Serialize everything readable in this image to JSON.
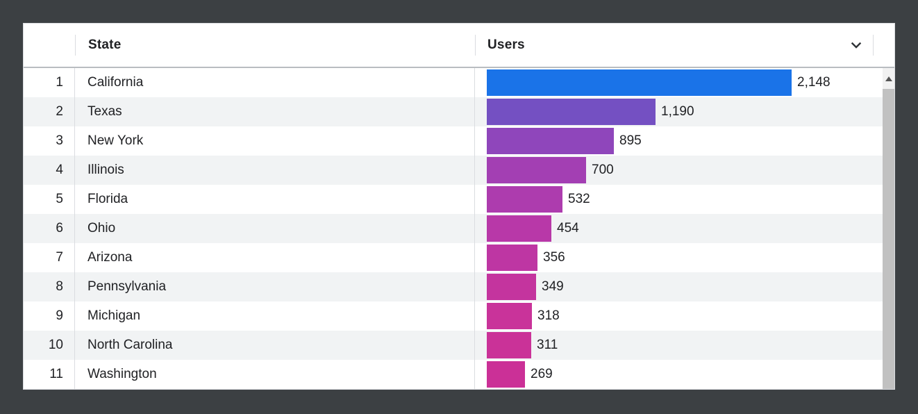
{
  "window": {
    "background_color": "#3c4043"
  },
  "table": {
    "header": {
      "index_label": "",
      "state_label": "State",
      "users_label": "Users"
    }
  },
  "icons": {
    "users_header": "chevron-down-icon",
    "scrollbar_button": "triangle-up-icon"
  },
  "colors": {
    "top_bar_blue": "#1a73e8",
    "row_stripe": "#f1f3f4",
    "column_divider": "#dadce0",
    "header_border": "#b9bdc1",
    "text": "#202124",
    "scrollbar_thumb": "#c1c1c1",
    "scrollbar_button_bg": "#f1f1f1",
    "scrollbar_arrow": "#545454"
  },
  "chart_data": {
    "type": "bar",
    "orientation": "horizontal",
    "title": "",
    "xlabel": "Users",
    "ylabel": "State",
    "legend": false,
    "grid": false,
    "max_value": 2148,
    "xlim": [
      0,
      2148
    ],
    "ranks": [
      1,
      2,
      3,
      4,
      5,
      6,
      7,
      8,
      9,
      10,
      11
    ],
    "categories": [
      "California",
      "Texas",
      "New York",
      "Illinois",
      "Florida",
      "Ohio",
      "Arizona",
      "Pennsylvania",
      "Michigan",
      "North Carolina",
      "Washington"
    ],
    "values": [
      2148,
      1190,
      895,
      700,
      532,
      454,
      356,
      349,
      318,
      311,
      269
    ],
    "value_labels": [
      "2,148",
      "1,190",
      "895",
      "700",
      "532",
      "454",
      "356",
      "349",
      "318",
      "311",
      "269"
    ],
    "bar_colors": [
      "#1a73e8",
      "#7450c2",
      "#8f46bb",
      "#a33fb3",
      "#ad3cae",
      "#b838a8",
      "#be36a3",
      "#c4349e",
      "#c9339a",
      "#ca3298",
      "#cb3097"
    ]
  }
}
